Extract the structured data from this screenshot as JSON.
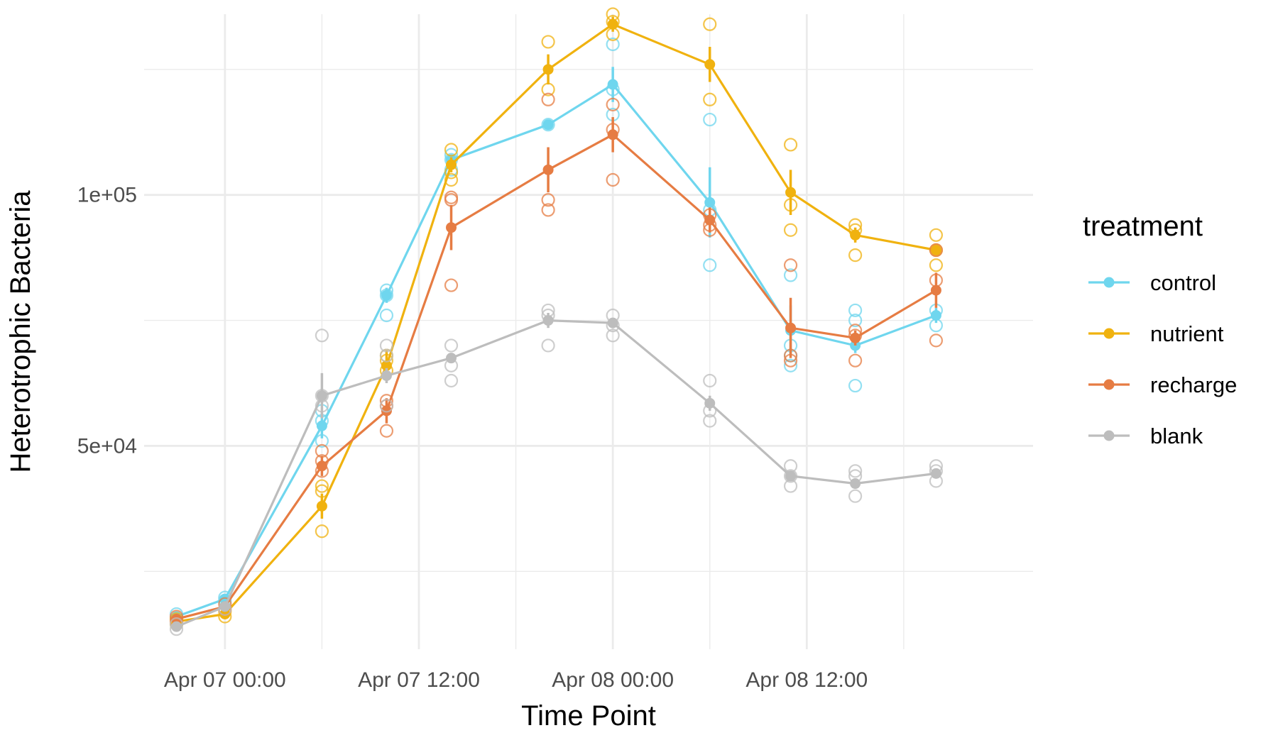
{
  "chart_data": {
    "type": "line",
    "xlabel": "Time Point",
    "ylabel": "Heterotrophic Bacteria",
    "x_ticks": [
      "Apr 07 00:00",
      "Apr 07 12:00",
      "Apr 08 00:00",
      "Apr 08 12:00"
    ],
    "y_ticks": [
      "5e+04",
      "1e+05"
    ],
    "y_tick_values": [
      50000,
      100000
    ],
    "xlim": [
      "Apr 06 19:00",
      "Apr 09 02:00"
    ],
    "ylim": [
      9500,
      136000
    ],
    "x": [
      "Apr 06 21:00",
      "Apr 07 00:00",
      "Apr 07 06:00",
      "Apr 07 10:00",
      "Apr 07 14:00",
      "Apr 07 20:00",
      "Apr 08 00:00",
      "Apr 08 06:00",
      "Apr 08 11:00",
      "Apr 08 15:00",
      "Apr 08 20:00"
    ],
    "legend_title": "treatment",
    "legend_position": "right",
    "grid": true,
    "series": [
      {
        "name": "control",
        "color": "#6fd6ee",
        "values": [
          16000,
          19500,
          54000,
          80000,
          107000,
          114000,
          122000,
          98500,
          73000,
          70000,
          76000
        ],
        "errors": [
          0,
          0,
          2500,
          1500,
          1000,
          0,
          3500,
          7000,
          5000,
          1500,
          1500
        ],
        "replicates": [
          [
            15500,
            16500
          ],
          [
            19200,
            19800
          ],
          [
            51000,
            55000,
            57000
          ],
          [
            76000,
            80000,
            81000
          ],
          [
            105000,
            107000,
            108000
          ],
          [
            114000
          ],
          [
            116000,
            121000,
            130000
          ],
          [
            86000,
            97000,
            115000
          ],
          [
            66000,
            68000,
            70000,
            84000
          ],
          [
            62000,
            75000,
            77000
          ],
          [
            74000,
            77000
          ]
        ]
      },
      {
        "name": "nutrient",
        "color": "#f0b20f",
        "values": [
          15000,
          16500,
          38000,
          66000,
          106000,
          125000,
          134000,
          126000,
          100500,
          92000,
          89000
        ],
        "errors": [
          0,
          0,
          2500,
          3000,
          1500,
          3000,
          1500,
          3500,
          4500,
          1500,
          1000
        ],
        "replicates": [
          [
            14500,
            15500
          ],
          [
            16000,
            17000
          ],
          [
            33000,
            41000,
            42000
          ],
          [
            65000,
            67000,
            68000
          ],
          [
            103000,
            104500,
            109000
          ],
          [
            121000,
            130500
          ],
          [
            132000,
            134500,
            136000
          ],
          [
            119000,
            134000
          ],
          [
            93000,
            98000,
            110000
          ],
          [
            88000,
            93000,
            94000
          ],
          [
            86000,
            89000,
            92000
          ]
        ]
      },
      {
        "name": "recharge",
        "color": "#e67c43",
        "values": [
          15500,
          18000,
          46000,
          57000,
          93500,
          105000,
          112000,
          95000,
          73500,
          71500,
          81000
        ],
        "errors": [
          0,
          0,
          2000,
          2500,
          4500,
          4500,
          3500,
          2500,
          6000,
          1500,
          3500
        ],
        "replicates": [
          [
            15000,
            16000
          ],
          [
            17500,
            18500
          ],
          [
            45000,
            47000,
            49000
          ],
          [
            53000,
            58000,
            59000
          ],
          [
            82000,
            99000,
            99500
          ],
          [
            97000,
            99000,
            119000
          ],
          [
            103000,
            113000,
            118000
          ],
          [
            93000,
            94000,
            96000
          ],
          [
            67000,
            68000,
            86000
          ],
          [
            67000,
            72000,
            73000
          ],
          [
            71000,
            83000,
            89000
          ]
        ]
      },
      {
        "name": "blank",
        "color": "#bdbdbd",
        "values": [
          14000,
          18000,
          60000,
          64000,
          67500,
          75000,
          74500,
          58500,
          44000,
          42500,
          44500
        ],
        "errors": [
          0,
          0,
          4500,
          1500,
          1000,
          1500,
          1000,
          1500,
          1000,
          1000,
          1000
        ],
        "replicates": [
          [
            13500,
            14500
          ],
          [
            17500
          ],
          [
            58000,
            60000,
            72000
          ],
          [
            58000,
            68000,
            70000
          ],
          [
            63000,
            66000,
            70000
          ],
          [
            70000,
            76000,
            77000
          ],
          [
            72000,
            74000,
            76000
          ],
          [
            55000,
            57000,
            63000
          ],
          [
            42000,
            44000,
            46000
          ],
          [
            40000,
            44000,
            45000
          ],
          [
            43000,
            45000,
            46000
          ]
        ]
      }
    ]
  }
}
